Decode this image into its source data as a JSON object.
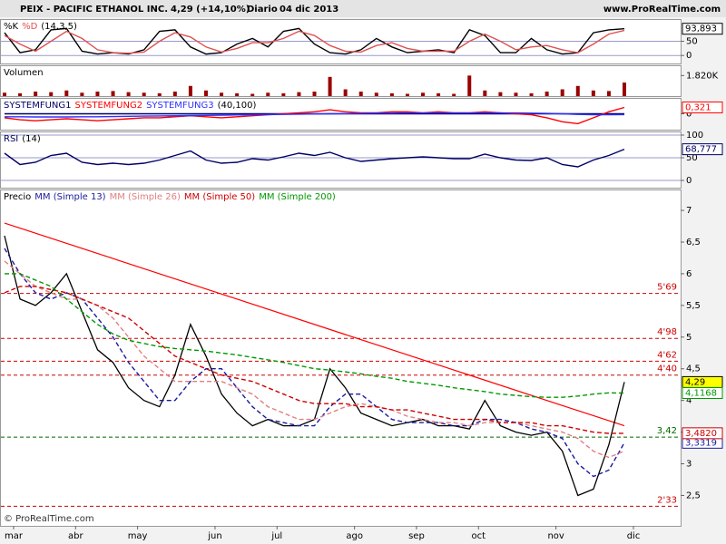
{
  "header": {
    "symbol": "PEIX - PACIFIC ETHANOL INC.",
    "quote": "4,29 (+14,10%)",
    "period": "Diario",
    "date": "04 dic 2013",
    "site": "www.ProRealTime.com",
    "footer": "© ProRealTime.com"
  },
  "chart_data": [
    {
      "type": "line",
      "params": "(14,3,5)",
      "ylim": [
        -28,
        128
      ],
      "yticks": [
        0,
        50
      ],
      "grid": true,
      "series": [
        {
          "name": "%K",
          "color": "#000000",
          "values": [
            80,
            10,
            20,
            90,
            95,
            15,
            5,
            10,
            5,
            20,
            85,
            90,
            30,
            5,
            10,
            40,
            60,
            30,
            85,
            95,
            40,
            10,
            5,
            20,
            60,
            30,
            10,
            15,
            20,
            10,
            90,
            70,
            10,
            10,
            60,
            20,
            5,
            10,
            80,
            90,
            93.893
          ],
          "value_labels": [
            null,
            null,
            null,
            null,
            null,
            null,
            null,
            null,
            null,
            null,
            null,
            null,
            null,
            null,
            null,
            null,
            null,
            null,
            null,
            null,
            null,
            null,
            null,
            null,
            null,
            null,
            null,
            null,
            null,
            null,
            null,
            null,
            null,
            null,
            null,
            null,
            null,
            null,
            null,
            null,
            "93,893"
          ]
        },
        {
          "name": "%D",
          "color": "#e05050",
          "values": [
            70,
            40,
            15,
            50,
            85,
            60,
            20,
            10,
            8,
            12,
            50,
            80,
            65,
            30,
            12,
            25,
            45,
            45,
            60,
            85,
            70,
            35,
            15,
            12,
            35,
            45,
            25,
            15,
            15,
            15,
            50,
            75,
            50,
            20,
            30,
            35,
            20,
            10,
            40,
            75,
            88
          ]
        }
      ]
    },
    {
      "type": "bar",
      "title": "Volumen",
      "color": "#990000",
      "ylim": [
        0,
        2730000
      ],
      "yticks": [
        {
          "value": 1820000,
          "label": "1.820K"
        }
      ],
      "grid": false,
      "values": [
        300000,
        250000,
        400000,
        350000,
        500000,
        300000,
        400000,
        450000,
        350000,
        300000,
        250000,
        400000,
        900000,
        500000,
        300000,
        250000,
        200000,
        300000,
        250000,
        350000,
        400000,
        1700000,
        600000,
        400000,
        300000,
        250000,
        200000,
        300000,
        250000,
        200000,
        1820000,
        500000,
        350000,
        300000,
        250000,
        400000,
        600000,
        900000,
        500000,
        450000,
        1200000
      ]
    },
    {
      "type": "line",
      "params": "(40,100)",
      "ylim": [
        -0.8,
        0.8
      ],
      "yticks": [
        0
      ],
      "grid": false,
      "series": [
        {
          "name": "SYSTEMFUNG1",
          "color": "#000066",
          "values": [
            0,
            0,
            0,
            0,
            0,
            0,
            0,
            0,
            0,
            0,
            0,
            0,
            0,
            0,
            0,
            0,
            0,
            0,
            0,
            0,
            0,
            0,
            0,
            0,
            0,
            0,
            0,
            0,
            0,
            0,
            0,
            0,
            0,
            0,
            0,
            0,
            0,
            0,
            0,
            0,
            0
          ]
        },
        {
          "name": "SYSTEMFUNG2",
          "color": "#ff0000",
          "values": [
            -0.2,
            -0.3,
            -0.35,
            -0.3,
            -0.25,
            -0.3,
            -0.35,
            -0.3,
            -0.25,
            -0.2,
            -0.2,
            -0.15,
            -0.1,
            -0.15,
            -0.2,
            -0.15,
            -0.1,
            -0.05,
            0,
            0.05,
            0.1,
            0.2,
            0.1,
            0.05,
            0.05,
            0.1,
            0.1,
            0.05,
            0.1,
            0.05,
            0.05,
            0.1,
            0.05,
            0,
            -0.05,
            -0.2,
            -0.4,
            -0.5,
            -0.2,
            0.1,
            0.321
          ],
          "value_labels": [
            null,
            null,
            null,
            null,
            null,
            null,
            null,
            null,
            null,
            null,
            null,
            null,
            null,
            null,
            null,
            null,
            null,
            null,
            null,
            null,
            null,
            null,
            null,
            null,
            null,
            null,
            null,
            null,
            null,
            null,
            null,
            null,
            null,
            null,
            null,
            null,
            null,
            null,
            null,
            null,
            "0,321"
          ]
        },
        {
          "name": "SYSTEMFUNG3",
          "color": "#3030ff",
          "values": [
            -0.15,
            -0.15,
            -0.16,
            -0.16,
            -0.16,
            -0.15,
            -0.15,
            -0.14,
            -0.13,
            -0.12,
            -0.11,
            -0.1,
            -0.09,
            -0.08,
            -0.07,
            -0.06,
            -0.05,
            -0.04,
            -0.03,
            -0.02,
            -0.01,
            0,
            0.01,
            0.02,
            0.03,
            0.03,
            0.04,
            0.04,
            0.04,
            0.04,
            0.04,
            0.04,
            0.04,
            0.04,
            0.03,
            0.02,
            0,
            -0.03,
            -0.05,
            -0.05,
            -0.04
          ]
        }
      ]
    },
    {
      "type": "line",
      "params": "(14)",
      "ylim": [
        -16,
        108
      ],
      "yticks": [
        0,
        50,
        100
      ],
      "grid": true,
      "series": [
        {
          "name": "RSI",
          "color": "#000066",
          "values": [
            60,
            35,
            40,
            55,
            60,
            40,
            35,
            38,
            35,
            38,
            45,
            55,
            65,
            45,
            38,
            40,
            48,
            45,
            52,
            60,
            55,
            62,
            50,
            42,
            45,
            48,
            50,
            52,
            50,
            48,
            48,
            58,
            50,
            45,
            44,
            50,
            35,
            30,
            45,
            55,
            68.777
          ],
          "value_labels": [
            null,
            null,
            null,
            null,
            null,
            null,
            null,
            null,
            null,
            null,
            null,
            null,
            null,
            null,
            null,
            null,
            null,
            null,
            null,
            null,
            null,
            null,
            null,
            null,
            null,
            null,
            null,
            null,
            null,
            null,
            null,
            null,
            null,
            null,
            null,
            null,
            null,
            null,
            null,
            null,
            "68,777"
          ]
        }
      ]
    },
    {
      "type": "line",
      "ylim": [
        2.02,
        7.33
      ],
      "yticks": [
        {
          "value": 2.5,
          "label": "2,5"
        },
        3,
        {
          "value": 3.5,
          "label": "3,5"
        },
        4,
        {
          "value": 4.5,
          "label": "4,5"
        },
        5,
        {
          "value": 5.5,
          "label": "5,5"
        },
        6,
        {
          "value": 6.5,
          "label": "6,5"
        },
        7
      ],
      "grid": false,
      "categories": [
        "mar",
        null,
        null,
        null,
        "abr",
        null,
        null,
        null,
        "may",
        null,
        null,
        null,
        null,
        "jun",
        null,
        null,
        null,
        "jul",
        null,
        null,
        null,
        null,
        "ago",
        null,
        null,
        null,
        "sep",
        null,
        null,
        null,
        "oct",
        null,
        null,
        null,
        null,
        "nov",
        null,
        null,
        null,
        null,
        "dic"
      ],
      "series": [
        {
          "name": "Precio",
          "color": "#000000",
          "label_fill": "#ffff00",
          "values": [
            6.6,
            5.6,
            5.5,
            5.7,
            6.0,
            5.4,
            4.8,
            4.6,
            4.2,
            4.0,
            3.9,
            4.4,
            5.2,
            4.7,
            4.1,
            3.8,
            3.6,
            3.7,
            3.6,
            3.6,
            3.7,
            4.5,
            4.2,
            3.8,
            3.7,
            3.6,
            3.65,
            3.7,
            3.6,
            3.6,
            3.55,
            4.0,
            3.6,
            3.5,
            3.45,
            3.5,
            3.2,
            2.5,
            2.6,
            3.3,
            4.29
          ],
          "value_labels": [
            null,
            null,
            null,
            null,
            null,
            null,
            null,
            null,
            null,
            null,
            null,
            null,
            null,
            null,
            null,
            null,
            null,
            null,
            null,
            null,
            null,
            null,
            null,
            null,
            null,
            null,
            null,
            null,
            null,
            null,
            null,
            null,
            null,
            null,
            null,
            null,
            null,
            null,
            null,
            null,
            "4,29"
          ]
        },
        {
          "name": "MM (Simple 13)",
          "color": "#1a1aa0",
          "dashed": true,
          "values": [
            6.4,
            6.0,
            5.7,
            5.6,
            5.7,
            5.6,
            5.3,
            5.0,
            4.6,
            4.3,
            4.0,
            4.0,
            4.3,
            4.5,
            4.5,
            4.2,
            3.9,
            3.7,
            3.65,
            3.6,
            3.6,
            3.9,
            4.1,
            4.1,
            3.9,
            3.7,
            3.65,
            3.65,
            3.65,
            3.6,
            3.6,
            3.7,
            3.7,
            3.65,
            3.55,
            3.5,
            3.4,
            3.0,
            2.8,
            2.9,
            3.3319
          ],
          "value_labels": [
            null,
            null,
            null,
            null,
            null,
            null,
            null,
            null,
            null,
            null,
            null,
            null,
            null,
            null,
            null,
            null,
            null,
            null,
            null,
            null,
            null,
            null,
            null,
            null,
            null,
            null,
            null,
            null,
            null,
            null,
            null,
            null,
            null,
            null,
            null,
            null,
            null,
            null,
            null,
            null,
            "3,3319"
          ]
        },
        {
          "name": "MM (Simple 26)",
          "color": "#e08080",
          "dashed": true,
          "values": [
            6.2,
            6.0,
            5.8,
            5.7,
            5.6,
            5.6,
            5.5,
            5.3,
            5.0,
            4.7,
            4.5,
            4.3,
            4.3,
            4.3,
            4.3,
            4.2,
            4.1,
            3.9,
            3.8,
            3.7,
            3.7,
            3.8,
            3.9,
            3.95,
            3.9,
            3.85,
            3.75,
            3.7,
            3.65,
            3.65,
            3.6,
            3.65,
            3.65,
            3.65,
            3.6,
            3.55,
            3.5,
            3.4,
            3.2,
            3.1,
            3.2
          ]
        },
        {
          "name": "MM (Simple 50)",
          "color": "#cc0000",
          "dashed": true,
          "values": [
            5.7,
            5.8,
            5.8,
            5.75,
            5.7,
            5.6,
            5.5,
            5.4,
            5.3,
            5.1,
            4.9,
            4.7,
            4.6,
            4.5,
            4.4,
            4.35,
            4.3,
            4.2,
            4.1,
            4.0,
            3.95,
            3.95,
            3.95,
            3.9,
            3.9,
            3.85,
            3.85,
            3.8,
            3.75,
            3.7,
            3.7,
            3.7,
            3.65,
            3.65,
            3.65,
            3.6,
            3.6,
            3.55,
            3.5,
            3.48,
            3.482
          ],
          "value_labels": [
            null,
            null,
            null,
            null,
            null,
            null,
            null,
            null,
            null,
            null,
            null,
            null,
            null,
            null,
            null,
            null,
            null,
            null,
            null,
            null,
            null,
            null,
            null,
            null,
            null,
            null,
            null,
            null,
            null,
            null,
            null,
            null,
            null,
            null,
            null,
            null,
            null,
            null,
            null,
            null,
            "3,4820"
          ]
        },
        {
          "name": "MM (Simple 200)",
          "color": "#009900",
          "dashed": true,
          "values": [
            6.0,
            6.0,
            5.9,
            5.8,
            5.6,
            5.4,
            5.2,
            5.05,
            4.95,
            4.9,
            4.85,
            4.82,
            4.8,
            4.78,
            4.75,
            4.72,
            4.68,
            4.64,
            4.6,
            4.55,
            4.5,
            4.48,
            4.45,
            4.42,
            4.38,
            4.35,
            4.3,
            4.27,
            4.24,
            4.2,
            4.17,
            4.14,
            4.1,
            4.08,
            4.06,
            4.05,
            4.05,
            4.07,
            4.1,
            4.12,
            4.1168
          ],
          "value_labels": [
            null,
            null,
            null,
            null,
            null,
            null,
            null,
            null,
            null,
            null,
            null,
            null,
            null,
            null,
            null,
            null,
            null,
            null,
            null,
            null,
            null,
            null,
            null,
            null,
            null,
            null,
            null,
            null,
            null,
            null,
            null,
            null,
            null,
            null,
            null,
            null,
            null,
            null,
            null,
            null,
            "4,1168"
          ]
        }
      ],
      "levels": [
        {
          "value": 5.69,
          "label": "5'69",
          "color": "#cc0000"
        },
        {
          "value": 4.98,
          "label": "4'98",
          "color": "#cc0000"
        },
        {
          "value": 4.62,
          "label": "4'62",
          "color": "#cc0000"
        },
        {
          "value": 4.4,
          "label": "4'40",
          "color": "#cc0000"
        },
        {
          "value": 3.42,
          "label": "3,42",
          "color": "#006600"
        },
        {
          "value": 2.33,
          "label": "2'33",
          "color": "#cc0000"
        }
      ],
      "trendline": {
        "values": [
          6.8,
          3.6
        ],
        "color": "#ff0000"
      }
    }
  ]
}
